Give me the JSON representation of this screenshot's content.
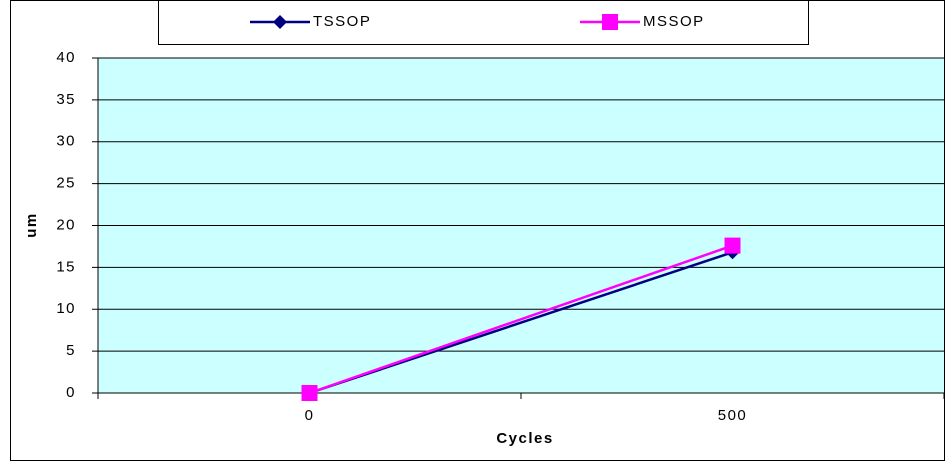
{
  "chart_data": {
    "type": "line",
    "x_label": "Cycles",
    "y_label": "um",
    "categories": [
      "0",
      "500"
    ],
    "series": [
      {
        "name": "TSSOP",
        "color": "#000080",
        "marker": "diamond",
        "values": [
          0,
          16.8
        ]
      },
      {
        "name": "MSSOP",
        "color": "#ff00ff",
        "marker": "square",
        "values": [
          0,
          17.6
        ]
      }
    ],
    "ylim": [
      0,
      40
    ],
    "yticks": [
      0,
      5,
      10,
      15,
      20,
      25,
      30,
      35,
      40
    ],
    "grid": true,
    "legend": "top",
    "plot_background": "#ccffff"
  }
}
